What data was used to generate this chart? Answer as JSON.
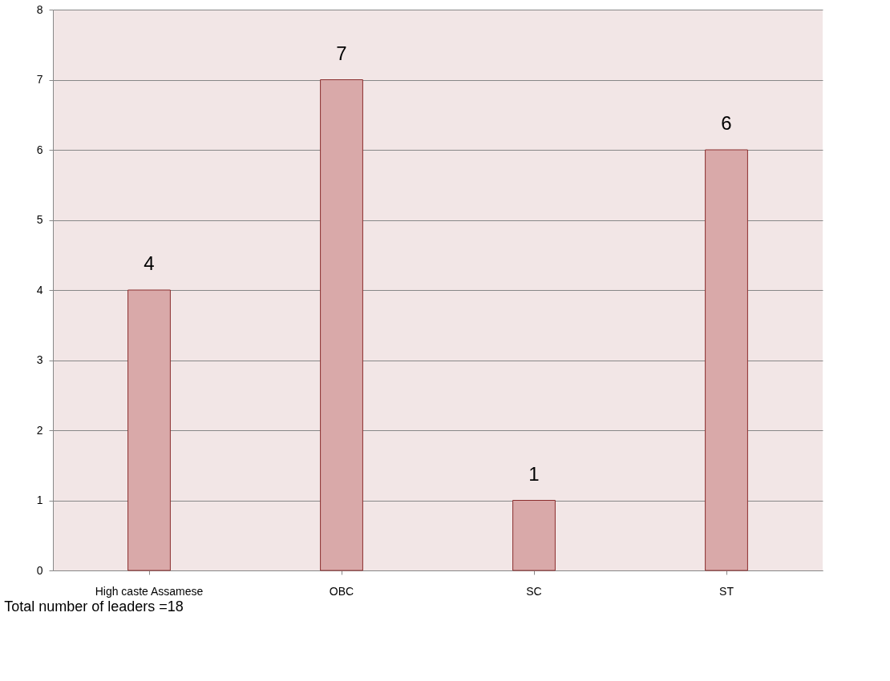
{
  "chart_data": {
    "type": "bar",
    "categories": [
      "High caste Assamese",
      "OBC",
      "SC",
      "ST"
    ],
    "values": [
      4,
      7,
      1,
      6
    ],
    "color": "#d9a9a9",
    "ylim": [
      0,
      8
    ],
    "yticks": [
      0,
      1,
      2,
      3,
      4,
      5,
      6,
      7,
      8
    ],
    "grid": "y",
    "data_labels": true,
    "annotations": [
      "Total number of leaders =18"
    ]
  }
}
